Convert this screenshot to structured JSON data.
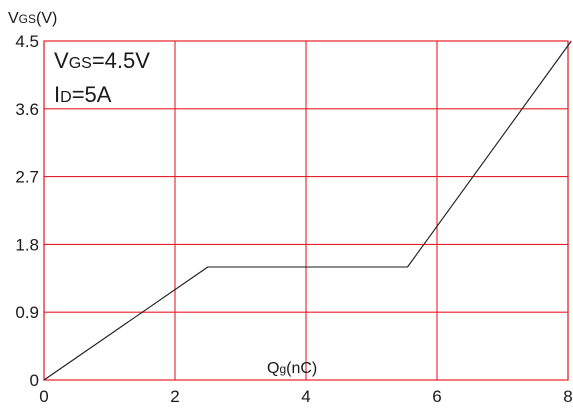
{
  "chart_data": {
    "type": "line",
    "title": "",
    "ylabel": {
      "main": "V",
      "sub": "GS",
      "rest": "(V)"
    },
    "xlabel": {
      "main": "Q",
      "sub": "g",
      "rest": "(nC)"
    },
    "xlim": [
      0,
      8
    ],
    "ylim": [
      0,
      4.5
    ],
    "x_ticks": [
      0,
      2,
      4,
      6,
      8
    ],
    "x_tick_labels": [
      "0",
      "2",
      "4",
      "6",
      "8"
    ],
    "y_ticks": [
      0,
      0.9,
      1.8,
      2.7,
      3.6,
      4.5
    ],
    "y_tick_labels": [
      "0",
      "0.9",
      "1.8",
      "2.7",
      "3.6",
      "4.5"
    ],
    "grid": true,
    "grid_color": "#e8202a",
    "line_color": "#1a1a1a",
    "annotations": [
      {
        "main": "V",
        "sub": "GS",
        "rest": "=4.5V"
      },
      {
        "main": "I",
        "sub": "D",
        "rest": "=5A"
      }
    ],
    "series": [
      {
        "x": [
          0,
          2.5,
          5.55,
          8.05
        ],
        "y": [
          0,
          1.5,
          1.5,
          4.5
        ]
      }
    ]
  }
}
